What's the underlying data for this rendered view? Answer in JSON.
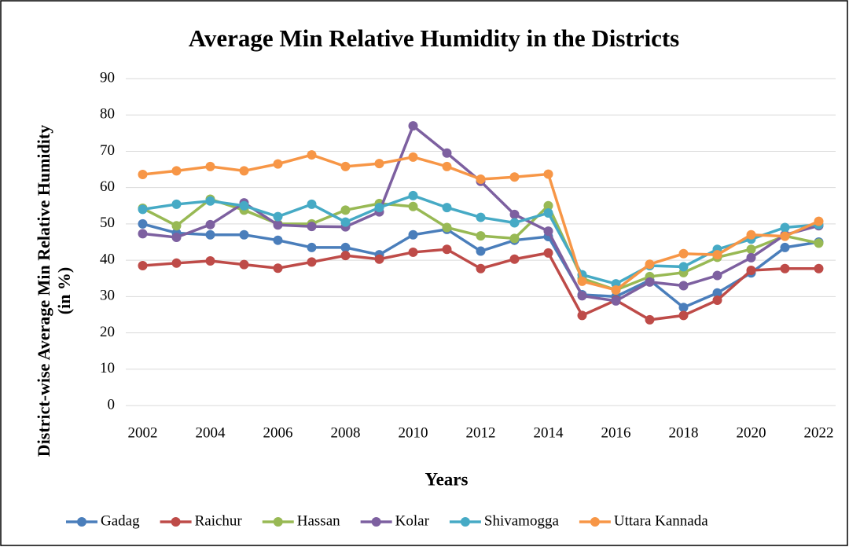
{
  "chart_data": {
    "type": "line",
    "title": "Average Min Relative Humidity in the Districts",
    "xlabel": "Years",
    "ylabel": [
      "District-wise Average Min Relative Humidity",
      "(in %)"
    ],
    "x": [
      2002,
      2003,
      2004,
      2005,
      2006,
      2007,
      2008,
      2009,
      2010,
      2011,
      2012,
      2013,
      2014,
      2015,
      2016,
      2017,
      2018,
      2019,
      2020,
      2021,
      2022
    ],
    "xlim": [
      2001.5,
      2022.5
    ],
    "xticks": [
      2002,
      2004,
      2006,
      2008,
      2010,
      2012,
      2014,
      2016,
      2018,
      2020,
      2022
    ],
    "ylim": [
      0,
      90
    ],
    "yticks": [
      0,
      10,
      20,
      30,
      40,
      50,
      60,
      70,
      80,
      90
    ],
    "grid": true,
    "legend": "bottom",
    "series": [
      {
        "name": "Gadag",
        "color": "#4a7ebb",
        "values": [
          50,
          47.5,
          47,
          47,
          45.5,
          43.5,
          43.5,
          41.5,
          47,
          48.5,
          42.5,
          45.5,
          46.5,
          30.5,
          30,
          34.5,
          27,
          31,
          36.5,
          43.5,
          45
        ]
      },
      {
        "name": "Raichur",
        "color": "#be4b48",
        "values": [
          38.5,
          39.2,
          39.8,
          38.8,
          37.8,
          39.5,
          41.3,
          40.3,
          42.2,
          43,
          37.7,
          40.3,
          42,
          24.8,
          29,
          23.6,
          24.8,
          29,
          37.2,
          37.7,
          37.7
        ]
      },
      {
        "name": "Hassan",
        "color": "#98b954",
        "values": [
          54.3,
          49.5,
          56.8,
          53.8,
          50,
          50,
          53.8,
          55.6,
          54.8,
          49,
          46.7,
          46,
          55,
          35,
          31.8,
          35.5,
          36.6,
          40.8,
          43,
          46.7,
          44.7
        ]
      },
      {
        "name": "Kolar",
        "color": "#7d60a0",
        "values": [
          47.3,
          46.3,
          49.8,
          55.8,
          49.7,
          49.3,
          49.2,
          53.3,
          77,
          69.5,
          61.7,
          52.6,
          48,
          30.2,
          28.8,
          34,
          33,
          35.8,
          40.7,
          47,
          49.5
        ]
      },
      {
        "name": "Shivamogga",
        "color": "#46aac5",
        "values": [
          54,
          55.4,
          56.3,
          55,
          52,
          55.4,
          50.5,
          54.5,
          57.8,
          54.5,
          51.8,
          50.3,
          53,
          36,
          33.5,
          38.5,
          38.2,
          43,
          45.8,
          49,
          49.8
        ]
      },
      {
        "name": "Uttara Kannada",
        "color": "#f79646",
        "values": [
          63.6,
          64.6,
          65.8,
          64.6,
          66.5,
          69,
          65.8,
          66.6,
          68.4,
          65.8,
          62.3,
          62.9,
          63.7,
          34.2,
          31.8,
          38.9,
          41.8,
          41.5,
          47,
          46.6,
          50.7
        ]
      }
    ]
  }
}
